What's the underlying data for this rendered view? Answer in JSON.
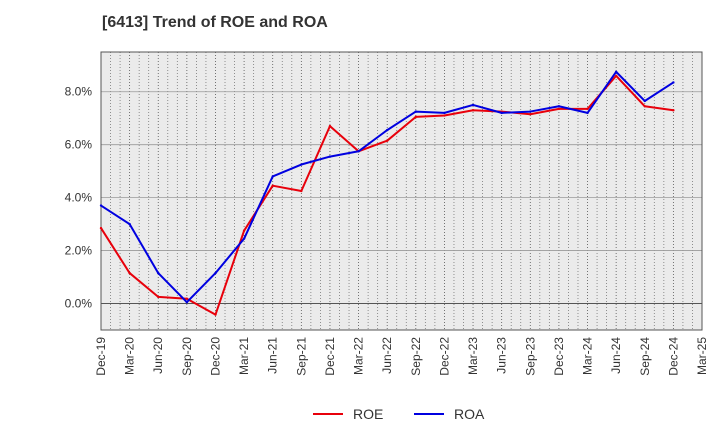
{
  "chart_data": {
    "type": "line",
    "title": "[6413]  Trend of ROE and ROA",
    "xlabel": "",
    "ylabel": "",
    "categories": [
      "Dec-19",
      "Mar-20",
      "Jun-20",
      "Sep-20",
      "Dec-20",
      "Mar-21",
      "Jun-21",
      "Sep-21",
      "Dec-21",
      "Mar-22",
      "Jun-22",
      "Sep-22",
      "Dec-22",
      "Mar-23",
      "Jun-23",
      "Sep-23",
      "Dec-23",
      "Mar-24",
      "Jun-24",
      "Sep-24",
      "Dec-24",
      "Mar-25"
    ],
    "ylim": [
      -1.0,
      9.5
    ],
    "yticks": [
      0.0,
      2.0,
      4.0,
      6.0,
      8.0
    ],
    "ytick_labels": [
      "0.0%",
      "2.0%",
      "4.0%",
      "6.0%",
      "8.0%"
    ],
    "grid": true,
    "legend_position": "bottom-center",
    "series": [
      {
        "name": "ROE",
        "color": "#e8000b",
        "values": [
          2.85,
          1.15,
          0.25,
          0.18,
          -0.42,
          2.75,
          4.45,
          4.25,
          6.7,
          5.75,
          6.15,
          7.05,
          7.1,
          7.3,
          7.25,
          7.15,
          7.35,
          7.35,
          8.6,
          7.45,
          7.3,
          null
        ]
      },
      {
        "name": "ROA",
        "color": "#0000e0",
        "values": [
          3.7,
          3.0,
          1.15,
          0.05,
          1.15,
          2.45,
          4.8,
          5.25,
          5.55,
          5.75,
          6.55,
          7.25,
          7.2,
          7.5,
          7.2,
          7.25,
          7.45,
          7.2,
          8.75,
          7.65,
          8.35,
          null
        ]
      }
    ]
  }
}
